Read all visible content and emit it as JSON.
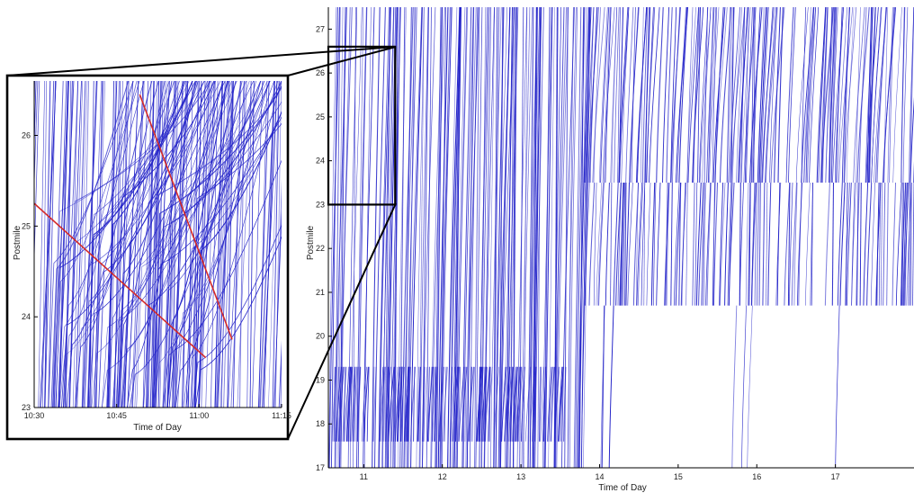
{
  "colors": {
    "trajectory": "#2222c8",
    "annotation_line": "#d42a2a",
    "frame": "#000000",
    "background": "#ffffff"
  },
  "chart_data": [
    {
      "id": "main",
      "type": "line",
      "chart_kind": "vehicle trajectory time-space diagram",
      "xlabel": "Time of Day",
      "ylabel": "Postmile",
      "xlim": [
        10.55,
        18.0
      ],
      "ylim": [
        17,
        27.5
      ],
      "x_ticks": [
        11,
        12,
        13,
        14,
        15,
        16,
        17
      ],
      "x_tick_labels": [
        "11",
        "12",
        "13",
        "14",
        "15",
        "16",
        "17"
      ],
      "y_ticks": [
        17,
        18,
        19,
        20,
        21,
        22,
        23,
        24,
        25,
        26,
        27
      ],
      "y_tick_labels": [
        "17",
        "18",
        "19",
        "20",
        "21",
        "22",
        "23",
        "24",
        "25",
        "26",
        "27"
      ],
      "grid": false,
      "density_regions": [
        {
          "t0": 10.55,
          "t1": 13.8,
          "p0": 17,
          "p1": 27.5,
          "density": 0.95
        },
        {
          "t0": 10.55,
          "t1": 13.6,
          "p0": 17.6,
          "p1": 19.3,
          "density": 1.0
        },
        {
          "t0": 13.8,
          "t1": 18.0,
          "p0": 23.5,
          "p1": 27.5,
          "density": 0.8
        },
        {
          "t0": 13.8,
          "t1": 18.0,
          "p0": 20.7,
          "p1": 23.5,
          "density": 0.6
        },
        {
          "t0": 13.8,
          "t1": 18.0,
          "p0": 17.0,
          "p1": 20.7,
          "density": 0.03
        }
      ],
      "zoom_window": {
        "t0": 10.55,
        "t1": 11.4,
        "p0": 23.0,
        "p1": 26.6
      }
    },
    {
      "id": "inset",
      "type": "line",
      "chart_kind": "vehicle trajectory time-space diagram (zoom)",
      "xlabel": "Time of Day",
      "ylabel": "Postmile",
      "xlim": [
        10.5,
        11.25
      ],
      "ylim": [
        23.0,
        26.6
      ],
      "x_ticks": [
        10.5,
        10.75,
        11.0,
        11.25
      ],
      "x_tick_labels": [
        "10:30",
        "10:45",
        "11:00",
        "11:15"
      ],
      "y_ticks": [
        23,
        24,
        25,
        26
      ],
      "y_tick_labels": [
        "23",
        "24",
        "25",
        "26"
      ],
      "grid": false,
      "shockwave_lines": [
        {
          "from": [
            10.5,
            25.25
          ],
          "to": [
            11.02,
            23.55
          ]
        },
        {
          "from": [
            10.82,
            26.45
          ],
          "to": [
            11.1,
            23.75
          ]
        }
      ]
    }
  ]
}
